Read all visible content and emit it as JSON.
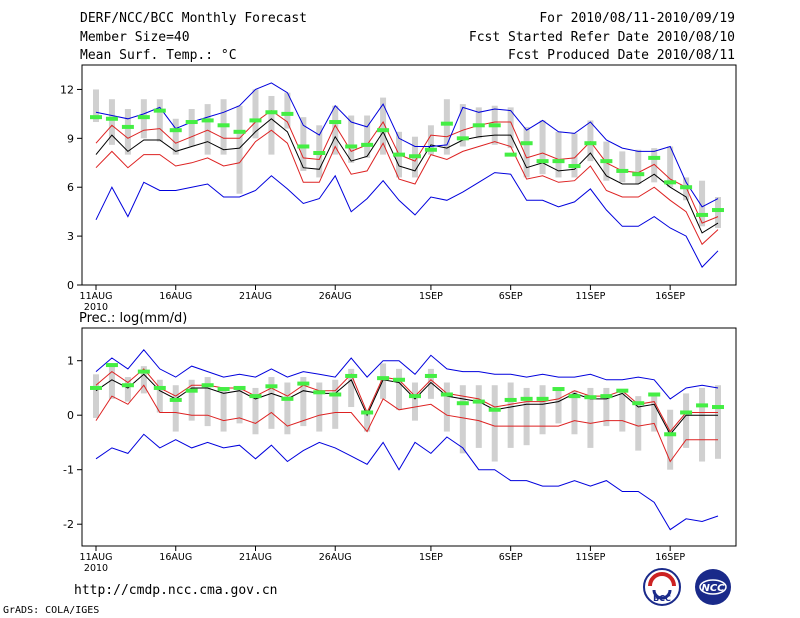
{
  "header": {
    "title": "DERF/NCC/BCC Monthly Forecast",
    "member_size": "Member Size=40",
    "variable1": "Mean Surf. Temp.: °C",
    "period": "For 2010/08/11-2010/09/19",
    "started": "Fcst Started Refer Date 2010/08/10",
    "produced": "Fcst Produced Date 2010/08/11"
  },
  "footer": {
    "url": "http://cmdp.ncc.cma.gov.cn",
    "grads": "GrADS: COLA/IGES",
    "logo_bcc": "BCC",
    "logo_ncc": "NCC"
  },
  "colors": {
    "envelope": "#0000dd",
    "spread": "#dd2222",
    "mean": "#000000",
    "member": "#44ee44",
    "bar": "#d0d0d0"
  },
  "chart_data": [
    {
      "type": "line",
      "title": "Mean Surf. Temp.: °C",
      "x_tick_labels": [
        "11AUG",
        "16AUG",
        "21AUG",
        "26AUG",
        "1SEP",
        "6SEP",
        "11SEP",
        "16SEP"
      ],
      "x_tick_days": [
        1,
        6,
        11,
        16,
        22,
        27,
        32,
        37
      ],
      "year_label": "2010",
      "days": 40,
      "ylim": [
        0,
        13.5
      ],
      "yticks": [
        0,
        3,
        6,
        9,
        12
      ],
      "series": [
        {
          "name": "max",
          "values": [
            4,
            6,
            4.2,
            6.3,
            5.8,
            5.8,
            6,
            6.2,
            5.4,
            5.4,
            5.8,
            6.7,
            5.9,
            5,
            5.3,
            6.7,
            4.5,
            5.3,
            6.4,
            5.2,
            4.3,
            5.4,
            5.2,
            5.7,
            6.3,
            6.9,
            6.8,
            5.2,
            5.2,
            4.8,
            5.1,
            5.9,
            4.6,
            3.6,
            3.6,
            4.2,
            3.5,
            3,
            1.1,
            2.1
          ]
        },
        {
          "name": "upper_red",
          "values": [
            7.2,
            8.2,
            7.2,
            8,
            8,
            7.3,
            7.5,
            7.8,
            7.3,
            7.5,
            8.8,
            9.5,
            8.7,
            6.3,
            6.3,
            8.5,
            6.8,
            7,
            8.7,
            6.5,
            6.2,
            8,
            7.7,
            8.2,
            8.5,
            8.8,
            8.5,
            6.5,
            6.7,
            6.3,
            6.4,
            7.3,
            5.8,
            5.4,
            5.4,
            6,
            5.2,
            4.5,
            2.5,
            3.4
          ]
        },
        {
          "name": "mean",
          "values": [
            8,
            9.2,
            8.2,
            8.9,
            8.9,
            8.2,
            8.5,
            8.8,
            8.3,
            8.4,
            9.4,
            10.2,
            9.4,
            7.2,
            7.1,
            9.1,
            7.6,
            7.9,
            9.4,
            7.3,
            7,
            8.6,
            8.4,
            8.9,
            9.1,
            9.2,
            9.2,
            7.2,
            7.5,
            7,
            7.1,
            8.1,
            6.7,
            6.2,
            6.2,
            6.8,
            6,
            5.4,
            3.2,
            3.8
          ]
        },
        {
          "name": "lower_red",
          "values": [
            8.7,
            9.8,
            9,
            9.5,
            9.6,
            8.7,
            9.1,
            9.5,
            9,
            9,
            10,
            10.7,
            10,
            7.8,
            7.7,
            9.8,
            8.2,
            8.6,
            10,
            8,
            7.6,
            9.2,
            9.1,
            9.5,
            9.8,
            10,
            10,
            7.8,
            8.1,
            7.7,
            7.8,
            8.8,
            7.5,
            7,
            6.9,
            7.4,
            6.5,
            6,
            3.8,
            4.2
          ]
        },
        {
          "name": "min",
          "values": [
            10.6,
            10.4,
            10.2,
            10.5,
            10.9,
            9.6,
            10,
            10.3,
            10.6,
            11,
            12,
            12.4,
            11.8,
            9.8,
            9.2,
            11,
            10,
            9.7,
            11.1,
            9,
            8.5,
            8.5,
            8.6,
            10.9,
            10.6,
            10.8,
            10.7,
            9.5,
            10.1,
            9.4,
            9.3,
            10,
            8.9,
            8.4,
            8.2,
            8.2,
            8.5,
            6.3,
            4.8,
            5.3
          ]
        },
        {
          "name": "member_mark",
          "values": [
            10.3,
            10.2,
            9.7,
            10.3,
            10.7,
            9.5,
            10,
            10.1,
            9.8,
            9.4,
            10.1,
            10.6,
            10.5,
            8.5,
            8.1,
            10,
            8.5,
            8.6,
            9.5,
            8,
            7.9,
            8.3,
            9.9,
            9,
            9.8,
            9.8,
            8,
            8.7,
            7.6,
            7.6,
            7.3,
            8.7,
            7.6,
            7,
            6.8,
            7.8,
            6.3,
            6,
            4.3,
            4.6
          ]
        }
      ],
      "bars_low": [
        10,
        8.6,
        8,
        9,
        8.8,
        8,
        8.5,
        8,
        8,
        5.6,
        9,
        8,
        9.6,
        7,
        6.6,
        8,
        7.5,
        7.8,
        8,
        6.6,
        6.6,
        8,
        8,
        8.5,
        9,
        8.6,
        8.4,
        6.6,
        6.8,
        6.6,
        6.6,
        7.6,
        6.4,
        6.3,
        6.2,
        6.3,
        6,
        5.2,
        3.6,
        3.5
      ],
      "bars_high": [
        12,
        11.4,
        10.8,
        11.4,
        11.4,
        10.2,
        10.8,
        11.1,
        11.4,
        11,
        12,
        11.6,
        11.8,
        10.3,
        9.8,
        11,
        10.4,
        10.4,
        11.5,
        9.4,
        9.1,
        9.8,
        11.4,
        11.1,
        10.9,
        11,
        10.9,
        9.7,
        10.1,
        9.4,
        9.3,
        10.1,
        8.8,
        8.2,
        8.3,
        8.4,
        8.5,
        6.6,
        6.4,
        5.4
      ]
    },
    {
      "type": "line",
      "title": "Prec.: log(mm/d)",
      "x_tick_labels": [
        "11AUG",
        "16AUG",
        "21AUG",
        "26AUG",
        "1SEP",
        "6SEP",
        "11SEP",
        "16SEP"
      ],
      "x_tick_days": [
        1,
        6,
        11,
        16,
        22,
        27,
        32,
        37
      ],
      "year_label": "2010",
      "days": 40,
      "ylim": [
        -2.4,
        1.6
      ],
      "yticks": [
        -2,
        -1,
        0,
        1
      ],
      "series": [
        {
          "name": "max",
          "values": [
            -0.8,
            -0.6,
            -0.7,
            -0.35,
            -0.6,
            -0.45,
            -0.6,
            -0.5,
            -0.6,
            -0.55,
            -0.8,
            -0.55,
            -0.85,
            -0.65,
            -0.5,
            -0.6,
            -0.75,
            -0.9,
            -0.5,
            -1,
            -0.5,
            -0.7,
            -0.4,
            -0.6,
            -1,
            -1,
            -1.2,
            -1.2,
            -1.3,
            -1.3,
            -1.2,
            -1.3,
            -1.2,
            -1.4,
            -1.4,
            -1.6,
            -2.1,
            -1.9,
            -1.95,
            -1.85
          ]
        },
        {
          "name": "upper_red",
          "values": [
            -0.1,
            0.35,
            0.2,
            0.55,
            0.05,
            0.05,
            0,
            0,
            -0.1,
            -0.05,
            -0.15,
            0.05,
            -0.2,
            -0.1,
            0,
            0.05,
            0.05,
            -0.3,
            0.3,
            0.1,
            0.15,
            0.2,
            0,
            -0.05,
            -0.1,
            -0.2,
            -0.2,
            -0.2,
            -0.2,
            -0.2,
            -0.1,
            -0.15,
            -0.1,
            -0.1,
            -0.2,
            -0.15,
            -0.85,
            -0.45,
            -0.45,
            -0.45
          ]
        },
        {
          "name": "mean",
          "values": [
            0.45,
            0.65,
            0.5,
            0.75,
            0.45,
            0.3,
            0.5,
            0.5,
            0.4,
            0.45,
            0.3,
            0.4,
            0.3,
            0.45,
            0.4,
            0.4,
            0.65,
            0,
            0.65,
            0.6,
            0.3,
            0.6,
            0.35,
            0.3,
            0.25,
            0.1,
            0.15,
            0.2,
            0.2,
            0.25,
            0.4,
            0.3,
            0.3,
            0.4,
            0.15,
            0.2,
            -0.35,
            0,
            0,
            0
          ]
        },
        {
          "name": "lower_red",
          "values": [
            0.55,
            0.8,
            0.6,
            0.85,
            0.5,
            0.35,
            0.55,
            0.55,
            0.5,
            0.5,
            0.35,
            0.5,
            0.35,
            0.55,
            0.45,
            0.45,
            0.75,
            0.05,
            0.7,
            0.65,
            0.35,
            0.65,
            0.4,
            0.35,
            0.3,
            0.15,
            0.2,
            0.25,
            0.25,
            0.3,
            0.45,
            0.35,
            0.35,
            0.45,
            0.2,
            0.25,
            -0.3,
            0.05,
            0.05,
            0.05
          ]
        },
        {
          "name": "min",
          "values": [
            0.8,
            1.05,
            0.85,
            1.2,
            0.85,
            0.7,
            0.9,
            0.8,
            0.7,
            0.75,
            0.7,
            0.85,
            0.7,
            0.8,
            0.75,
            0.7,
            1.05,
            0.7,
            1,
            1,
            0.75,
            1.1,
            0.85,
            0.8,
            0.8,
            0.75,
            0.75,
            0.7,
            0.75,
            0.7,
            0.7,
            0.75,
            0.65,
            0.65,
            0.7,
            0.65,
            0.3,
            0.5,
            0.55,
            0.5
          ]
        },
        {
          "name": "member_mark",
          "values": [
            0.5,
            0.92,
            0.55,
            0.8,
            0.5,
            0.28,
            0.45,
            0.55,
            0.48,
            0.5,
            0.35,
            0.53,
            0.3,
            0.58,
            0.42,
            0.38,
            0.72,
            0.05,
            0.68,
            0.65,
            0.35,
            0.72,
            0.38,
            0.22,
            0.25,
            0.1,
            0.28,
            0.3,
            0.3,
            0.48,
            0.35,
            0.33,
            0.35,
            0.45,
            0.22,
            0.38,
            -0.35,
            0.05,
            0.18,
            0.15
          ]
        }
      ],
      "bars_low": [
        -0.05,
        0.3,
        0.25,
        0.4,
        0.05,
        -0.3,
        -0.1,
        -0.2,
        -0.3,
        -0.15,
        -0.35,
        -0.25,
        -0.35,
        -0.2,
        -0.3,
        -0.25,
        0.15,
        -0.3,
        0.3,
        0.1,
        -0.1,
        0.3,
        -0.3,
        -0.7,
        -0.6,
        -0.85,
        -0.6,
        -0.55,
        -0.35,
        -0.15,
        -0.35,
        -0.6,
        -0.2,
        -0.3,
        -0.65,
        -0.3,
        -1,
        -0.6,
        -0.85,
        -0.8
      ],
      "bars_high": [
        0.75,
        0.95,
        0.7,
        0.9,
        0.65,
        0.55,
        0.65,
        0.7,
        0.5,
        0.5,
        0.5,
        0.7,
        0.6,
        0.7,
        0.6,
        0.65,
        0.85,
        0.1,
        0.95,
        0.85,
        0.6,
        0.85,
        0.6,
        0.55,
        0.55,
        0.55,
        0.6,
        0.5,
        0.55,
        0.5,
        0.45,
        0.5,
        0.5,
        0.45,
        0.35,
        0.4,
        0.1,
        0.4,
        0.5,
        0.55
      ]
    }
  ]
}
